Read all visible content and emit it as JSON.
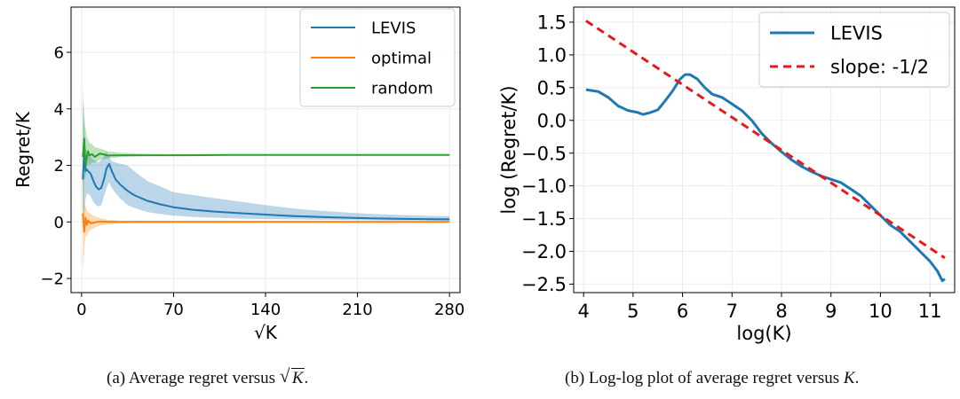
{
  "colors": {
    "levis": "#1f77b4",
    "optimal": "#ff7f0e",
    "random": "#2ca02c",
    "slope": "#e41a1c",
    "grid": "#ebebeb",
    "axis": "#000000"
  },
  "chart_data": [
    {
      "type": "line",
      "xlabel": "√K",
      "ylabel": "Regret/K",
      "xlim": [
        -8,
        288
      ],
      "ylim": [
        -2.5,
        7.6
      ],
      "xticks": [
        0,
        70,
        140,
        210,
        280
      ],
      "yticks": [
        -2,
        0,
        2,
        4,
        6
      ],
      "xtick_labels": [
        "0",
        "70",
        "140",
        "210",
        "280"
      ],
      "ytick_labels": [
        "−2",
        "0",
        "2",
        "4",
        "6"
      ],
      "grid": true,
      "legend_position": "top-right",
      "legend": [
        "LEVIS",
        "optimal",
        "random"
      ],
      "series": [
        {
          "name": "LEVIS",
          "color_key": "levis",
          "x": [
            1,
            2,
            3,
            4,
            5,
            7,
            9,
            11,
            13,
            15,
            17,
            19,
            21,
            23,
            26,
            30,
            35,
            40,
            50,
            60,
            70,
            85,
            100,
            120,
            140,
            160,
            180,
            200,
            220,
            240,
            260,
            280
          ],
          "y": [
            1.5,
            2.5,
            1.8,
            1.85,
            1.8,
            1.7,
            1.45,
            1.25,
            1.15,
            1.2,
            1.5,
            1.9,
            2.05,
            1.8,
            1.5,
            1.3,
            1.1,
            0.95,
            0.75,
            0.62,
            0.52,
            0.43,
            0.37,
            0.31,
            0.26,
            0.21,
            0.18,
            0.15,
            0.13,
            0.11,
            0.1,
            0.09
          ],
          "lower": [
            -0.3,
            0.2,
            0.8,
            1.0,
            1.0,
            0.9,
            0.7,
            0.6,
            0.55,
            0.6,
            0.9,
            1.2,
            1.4,
            1.2,
            1.0,
            0.8,
            0.6,
            0.5,
            0.35,
            0.28,
            0.22,
            0.18,
            0.15,
            0.12,
            0.1,
            0.09,
            0.08,
            0.07,
            0.06,
            0.05,
            0.05,
            0.04
          ],
          "upper": [
            4.3,
            3.4,
            2.6,
            2.5,
            2.4,
            2.3,
            2.2,
            2.15,
            2.1,
            2.2,
            2.3,
            2.5,
            2.3,
            2.15,
            2.1,
            2.05,
            2.0,
            1.8,
            1.45,
            1.25,
            1.05,
            0.95,
            0.85,
            0.72,
            0.6,
            0.48,
            0.4,
            0.34,
            0.29,
            0.25,
            0.22,
            0.2
          ]
        },
        {
          "name": "optimal",
          "color_key": "optimal",
          "x": [
            1,
            2,
            3,
            4,
            5,
            7,
            10,
            15,
            20,
            30,
            50,
            80,
            120,
            160,
            200,
            240,
            280
          ],
          "y": [
            0.3,
            -0.35,
            0.15,
            -0.1,
            0.05,
            -0.05,
            -0.02,
            0.02,
            0.0,
            0.0,
            0.0,
            0.0,
            0.0,
            0.0,
            0.0,
            0.0,
            0.0
          ],
          "lower": [
            -1.7,
            -1.1,
            -0.5,
            -0.5,
            -0.35,
            -0.28,
            -0.2,
            -0.12,
            -0.08,
            -0.05,
            -0.03,
            -0.02,
            -0.02,
            -0.02,
            -0.01,
            -0.01,
            -0.01
          ],
          "upper": [
            2.0,
            0.6,
            0.55,
            0.4,
            0.35,
            0.28,
            0.2,
            0.13,
            0.08,
            0.05,
            0.03,
            0.02,
            0.02,
            0.02,
            0.01,
            0.01,
            0.01
          ]
        },
        {
          "name": "random",
          "color_key": "random",
          "x": [
            1,
            2,
            3,
            4,
            5,
            6,
            8,
            10,
            14,
            20,
            30,
            50,
            80,
            120,
            160,
            200,
            240,
            280
          ],
          "y": [
            2.3,
            2.95,
            2.0,
            2.3,
            2.5,
            2.35,
            2.4,
            2.3,
            2.42,
            2.35,
            2.36,
            2.36,
            2.36,
            2.37,
            2.37,
            2.37,
            2.37,
            2.37
          ],
          "lower": [
            0.2,
            1.5,
            1.6,
            1.9,
            2.1,
            2.0,
            2.1,
            2.1,
            2.2,
            2.25,
            2.3,
            2.33,
            2.34,
            2.35,
            2.35,
            2.36,
            2.36,
            2.36
          ],
          "upper": [
            4.8,
            3.8,
            3.3,
            3.0,
            2.9,
            2.8,
            2.75,
            2.65,
            2.6,
            2.5,
            2.45,
            2.41,
            2.39,
            2.38,
            2.38,
            2.38,
            2.38,
            2.38
          ]
        }
      ]
    },
    {
      "type": "line",
      "xlabel": "log(K)",
      "ylabel": "log (Regret/K)",
      "xlim": [
        3.8,
        11.5
      ],
      "ylim": [
        -2.63,
        1.73
      ],
      "xticks": [
        4,
        5,
        6,
        7,
        8,
        9,
        10,
        11
      ],
      "yticks": [
        1.5,
        1.0,
        0.5,
        0.0,
        -0.5,
        -1.0,
        -1.5,
        -2.0,
        -2.5
      ],
      "xtick_labels": [
        "4",
        "5",
        "6",
        "7",
        "8",
        "9",
        "10",
        "11"
      ],
      "ytick_labels": [
        "1.5",
        "1.0",
        "0.5",
        "0.0",
        "−0.5",
        "−1.0",
        "−1.5",
        "−2.0",
        "−2.5"
      ],
      "grid": true,
      "legend_position": "top-right",
      "legend": [
        "LEVIS",
        "slope: -1/2"
      ],
      "series": [
        {
          "name": "LEVIS",
          "color_key": "levis",
          "x": [
            4.05,
            4.3,
            4.5,
            4.7,
            4.9,
            5.1,
            5.2,
            5.35,
            5.5,
            5.65,
            5.8,
            5.95,
            6.05,
            6.15,
            6.3,
            6.45,
            6.6,
            6.8,
            7.0,
            7.2,
            7.4,
            7.6,
            7.8,
            8.0,
            8.2,
            8.4,
            8.6,
            8.8,
            9.0,
            9.2,
            9.4,
            9.6,
            9.8,
            10.0,
            10.2,
            10.4,
            10.6,
            10.8,
            11.0,
            11.15,
            11.25,
            11.3
          ],
          "y": [
            0.47,
            0.44,
            0.35,
            0.22,
            0.15,
            0.12,
            0.09,
            0.12,
            0.16,
            0.3,
            0.45,
            0.63,
            0.7,
            0.7,
            0.63,
            0.5,
            0.4,
            0.35,
            0.25,
            0.15,
            0.0,
            -0.2,
            -0.35,
            -0.48,
            -0.6,
            -0.7,
            -0.78,
            -0.85,
            -0.9,
            -0.95,
            -1.05,
            -1.15,
            -1.3,
            -1.45,
            -1.6,
            -1.7,
            -1.85,
            -2.0,
            -2.15,
            -2.3,
            -2.45,
            -2.42
          ]
        },
        {
          "name": "slope: -1/2",
          "color_key": "slope",
          "dashed": true,
          "x": [
            4.05,
            11.3
          ],
          "y": [
            1.52,
            -2.1
          ]
        }
      ]
    }
  ],
  "captions": {
    "a_prefix": "(a) Average regret versus ",
    "a_sqrt": "K",
    "a_suffix": ".",
    "b_prefix": "(b) Log-log plot of average regret versus ",
    "b_var": "K",
    "b_suffix": "."
  }
}
